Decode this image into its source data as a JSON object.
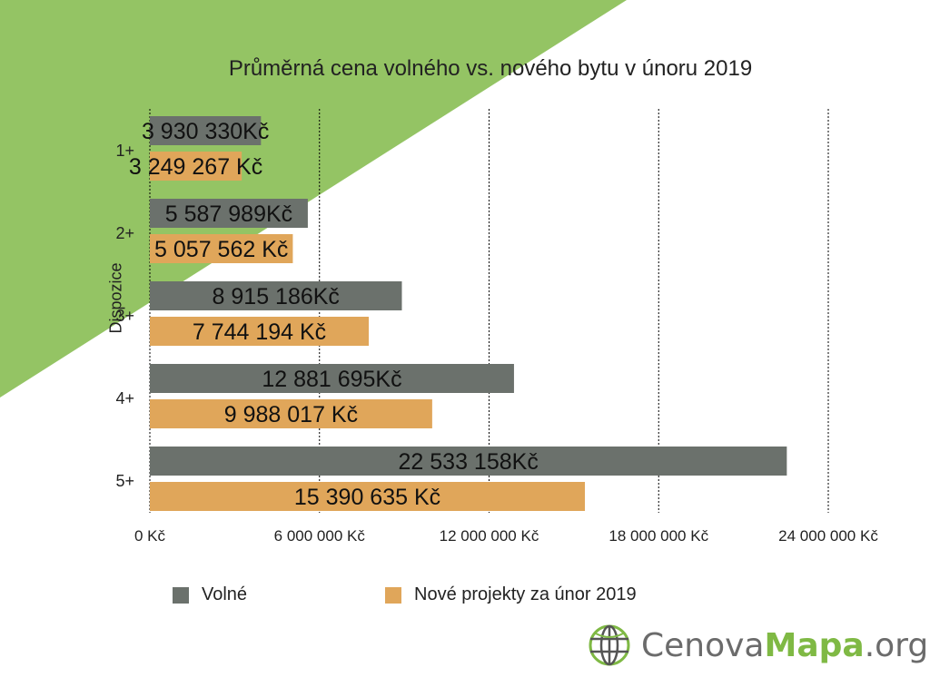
{
  "colors": {
    "background_triangle": "#94c464",
    "series_volne": "#6b716c",
    "series_nove": "#e0a65a",
    "grid": "#000000",
    "brand_green": "#7fb944",
    "brand_gray": "#6b6b6b"
  },
  "chart_data": {
    "type": "bar",
    "orientation": "horizontal",
    "title": "Průměrná cena volného vs. nového bytu v únoru 2019",
    "ylabel": "Dispozice",
    "xlabel": "",
    "xlim": [
      0,
      24000000
    ],
    "x_ticks": [
      0,
      6000000,
      12000000,
      18000000,
      24000000
    ],
    "x_tick_labels": [
      "0 Kč",
      "6 000 000 Kč",
      "12 000 000 Kč",
      "18 000 000 Kč",
      "24 000 000 Kč"
    ],
    "grid": "vertical dashed",
    "legend_position": "bottom",
    "categories": [
      "1+",
      "2+",
      "3+",
      "4+",
      "5+"
    ],
    "series": [
      {
        "name": "Volné",
        "values": [
          3930330,
          5587989,
          8915186,
          12881695,
          22533158
        ],
        "labels": [
          "3 930 330Kč",
          "5 587 989Kč",
          "8 915 186Kč",
          "12 881 695Kč",
          "22 533 158Kč"
        ]
      },
      {
        "name": "Nové projekty za únor 2019",
        "values": [
          3249267,
          5057562,
          7744194,
          9988017,
          15390635
        ],
        "labels": [
          "3 249 267 Kč",
          "5 057 562 Kč",
          "7 744 194 Kč",
          "9 988 017 Kč",
          "15 390 635 Kč"
        ]
      }
    ]
  },
  "logo": {
    "icon": "globe-icon",
    "text_part1": "Cenova",
    "text_part2": "Mapa",
    "text_part3": ".org"
  }
}
